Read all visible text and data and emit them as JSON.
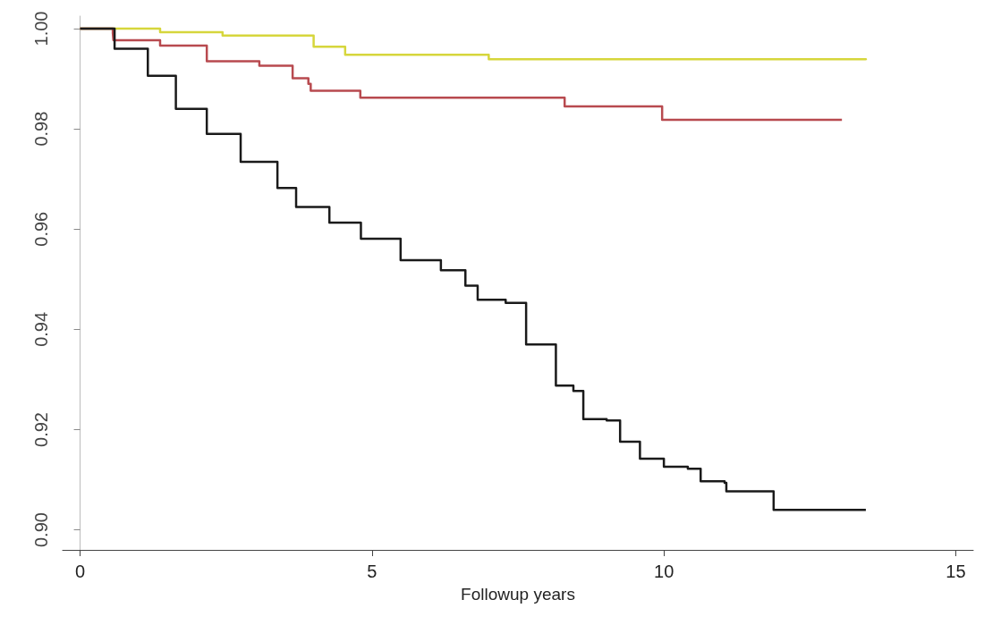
{
  "chart_data": {
    "type": "step",
    "xlabel": "Followup years",
    "xlim": [
      -0.3,
      15.3
    ],
    "ylim": [
      0.896,
      1.0025
    ],
    "xticks": [
      0,
      5,
      10,
      15
    ],
    "yticks": [
      {
        "value": 0.9,
        "label": "0.90"
      },
      {
        "value": 0.92,
        "label": "0.92"
      },
      {
        "value": 0.94,
        "label": "0.94"
      },
      {
        "value": 0.96,
        "label": "0.96"
      },
      {
        "value": 0.98,
        "label": "0.98"
      },
      {
        "value": 1.0,
        "label": "1.00"
      }
    ],
    "line_style": "solid",
    "series": [
      {
        "color": "#d6d63c",
        "x": [
          0,
          1.37,
          2.44,
          4.0,
          4.54,
          7.0,
          13.46
        ],
        "values": [
          1.0,
          0.9993,
          0.9986,
          0.9964,
          0.9948,
          0.9939,
          0.9937
        ]
      },
      {
        "color": "#b84a4f",
        "x": [
          0,
          0.56,
          0.57,
          1.37,
          2.17,
          3.07,
          3.64,
          3.91,
          3.95,
          4.8,
          8.3,
          9.97,
          13.05
        ],
        "values": [
          1.0,
          0.9991,
          0.9977,
          0.9966,
          0.9935,
          0.9926,
          0.9901,
          0.989,
          0.9876,
          0.9862,
          0.9845,
          0.9818,
          0.9818
        ]
      },
      {
        "color": "#1a1a1a",
        "x": [
          0,
          0.59,
          1.16,
          1.64,
          2.17,
          2.75,
          3.38,
          3.7,
          4.27,
          4.81,
          5.49,
          6.18,
          6.6,
          6.81,
          7.29,
          7.64,
          8.15,
          8.45,
          8.62,
          9.02,
          9.25,
          9.59,
          10.0,
          10.41,
          10.63,
          11.04,
          11.07,
          11.88,
          13.46
        ],
        "values": [
          1.0,
          0.996,
          0.9906,
          0.984,
          0.979,
          0.9734,
          0.9682,
          0.9644,
          0.9613,
          0.9581,
          0.9538,
          0.9518,
          0.9487,
          0.9459,
          0.9453,
          0.937,
          0.9288,
          0.9277,
          0.9221,
          0.9218,
          0.9176,
          0.9142,
          0.9126,
          0.9122,
          0.9097,
          0.9094,
          0.9077,
          0.904,
          0.904
        ]
      }
    ]
  }
}
